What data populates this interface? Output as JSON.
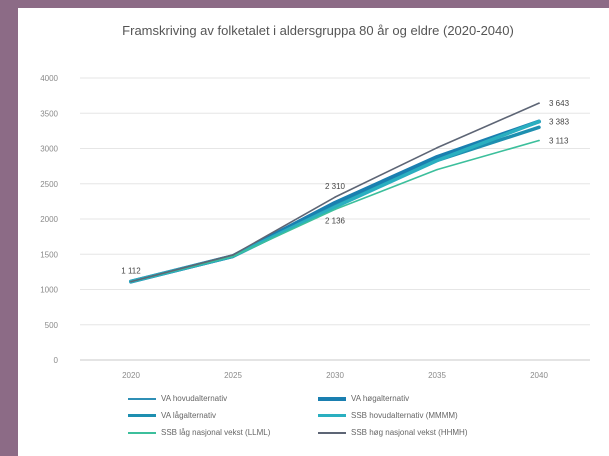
{
  "chart_data": {
    "type": "line",
    "title": "Framskriving av folketalet i aldersgruppa 80 år og eldre (2020-2040)",
    "x": [
      "2020",
      "2025",
      "2030",
      "2035",
      "2040"
    ],
    "ylim": [
      0,
      4000
    ],
    "yticks": [
      "0",
      "500",
      "1000",
      "1500",
      "2000",
      "2500",
      "3000",
      "3500",
      "4000"
    ],
    "grid": true,
    "legend_position": "bottom",
    "series": [
      {
        "name": "VA hovudalternativ",
        "color": "#2f8fb5",
        "width": 1.6,
        "values": [
          1112,
          1480,
          2200,
          2860,
          3383
        ]
      },
      {
        "name": "VA høgalternativ",
        "color": "#1a7fb0",
        "width": 4,
        "values": [
          1112,
          1475,
          2230,
          2880,
          3383
        ]
      },
      {
        "name": "VA lågalternativ",
        "color": "#1e8fb0",
        "width": 3.5,
        "values": [
          1112,
          1470,
          2180,
          2830,
          3300
        ]
      },
      {
        "name": "SSB hovudalternativ (MMMM)",
        "color": "#2aafc0",
        "width": 3.5,
        "values": [
          1112,
          1475,
          2170,
          2830,
          3383
        ]
      },
      {
        "name": "SSB låg nasjonal vekst (LLML)",
        "color": "#3cbf9c",
        "width": 1.6,
        "values": [
          1112,
          1470,
          2136,
          2700,
          3113
        ]
      },
      {
        "name": "SSB høg nasjonal vekst (HHMH)",
        "color": "#5d6575",
        "width": 1.6,
        "values": [
          1112,
          1490,
          2310,
          3010,
          3643
        ]
      }
    ],
    "annotations": [
      {
        "text": "1 112",
        "x": "2020",
        "y": 1112,
        "pos": "above"
      },
      {
        "text": "2 310",
        "x": "2030",
        "y": 2310,
        "pos": "above"
      },
      {
        "text": "2 136",
        "x": "2030",
        "y": 2136,
        "pos": "below"
      },
      {
        "text": "3 643",
        "x": "2040",
        "y": 3643,
        "pos": "right"
      },
      {
        "text": "3 383",
        "x": "2040",
        "y": 3383,
        "pos": "right"
      },
      {
        "text": "3 113",
        "x": "2040",
        "y": 3113,
        "pos": "right"
      }
    ]
  }
}
